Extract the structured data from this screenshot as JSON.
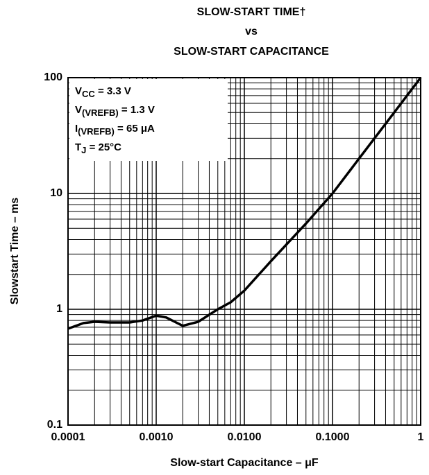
{
  "chart_data": {
    "type": "line",
    "title": [
      "SLOW-START TIME†",
      "vs",
      "SLOW-START CAPACITANCE"
    ],
    "xlabel": "Slow-start Capacitance – μF",
    "ylabel": "Slowstart Time – ms",
    "annotations": [
      {
        "text": "V",
        "sub": "CC",
        "suffix": " = 3.3 V"
      },
      {
        "text": "V",
        "sub": "(VREFB)",
        "suffix": " = 1.3 V"
      },
      {
        "text": "I",
        "sub": "(VREFB)",
        "suffix": " = 65 μA"
      },
      {
        "text": "T",
        "sub": "J",
        "suffix": " = 25°C"
      }
    ],
    "x": [
      0.0001,
      0.00015,
      0.0002,
      0.0003,
      0.0005,
      0.0007,
      0.001,
      0.0013,
      0.002,
      0.003,
      0.005,
      0.007,
      0.01,
      0.02,
      0.05,
      0.1,
      0.2,
      0.5,
      1
    ],
    "values": [
      0.68,
      0.76,
      0.78,
      0.77,
      0.77,
      0.8,
      0.88,
      0.85,
      0.72,
      0.78,
      1.0,
      1.15,
      1.45,
      2.6,
      5.5,
      10,
      20,
      50,
      100
    ],
    "color": "#000000",
    "xscale": "log",
    "yscale": "log",
    "xlim": [
      0.0001,
      1
    ],
    "ylim": [
      0.1,
      100
    ],
    "xticks": [
      0.0001,
      {
        "value": 0.001,
        "label": "0.0010"
      },
      {
        "value": 0.01,
        "label": "0.0100"
      },
      {
        "value": 0.1,
        "label": "0.1000"
      },
      1
    ],
    "yticks": [
      0.1,
      1,
      10,
      100
    ],
    "grid": true
  }
}
